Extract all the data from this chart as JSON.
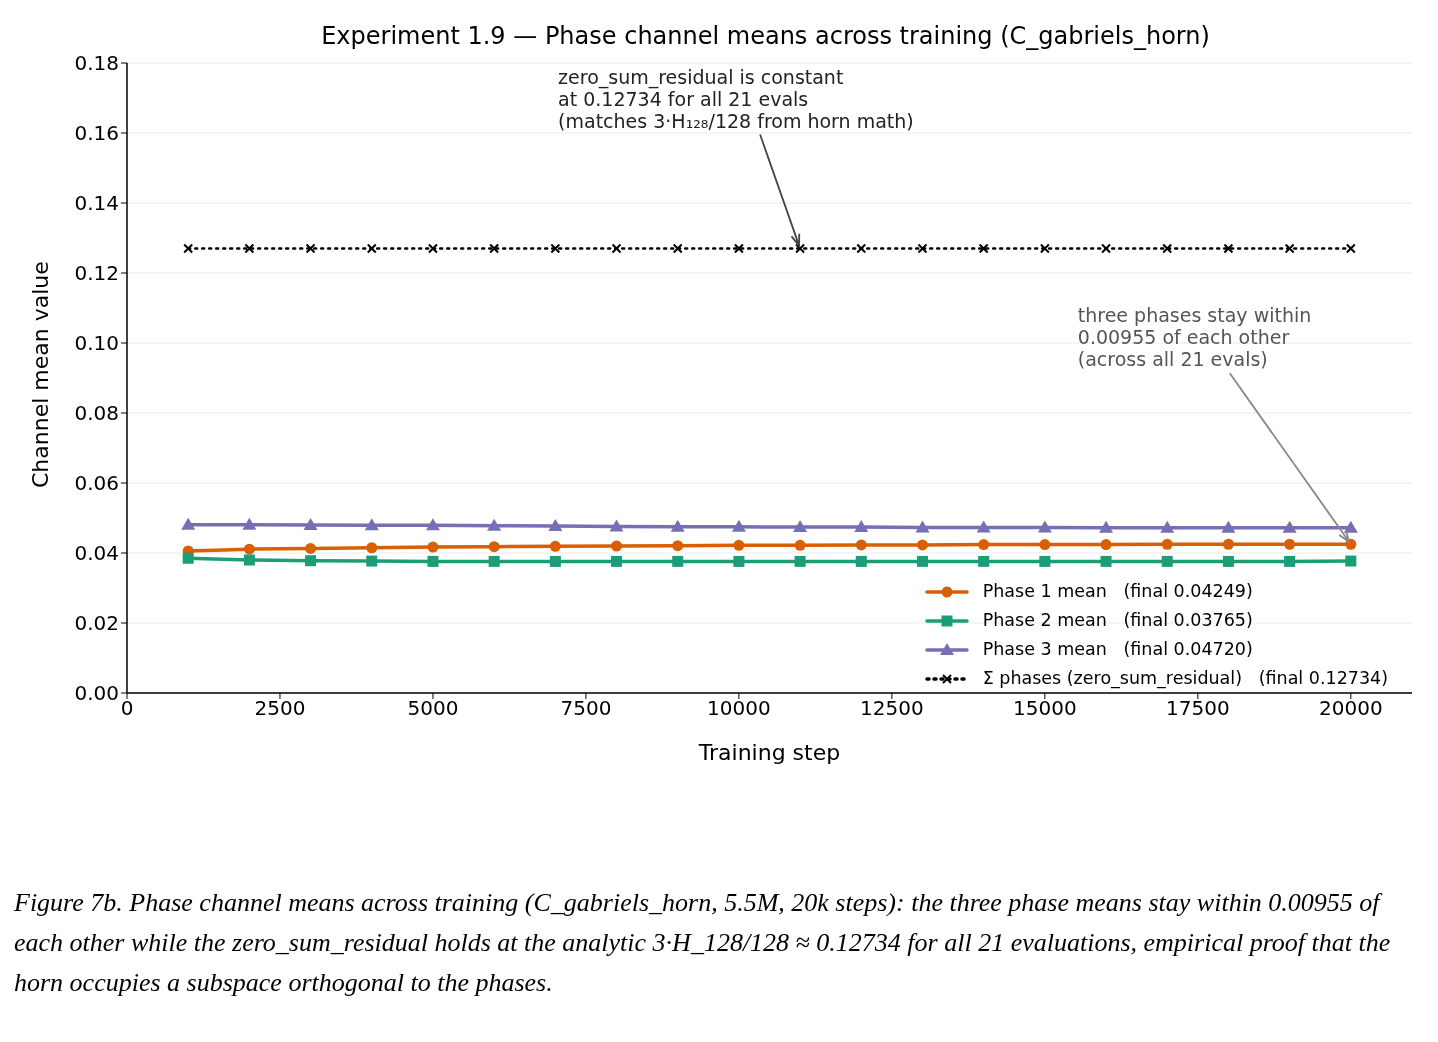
{
  "chart_data": {
    "type": "line",
    "title": "Experiment 1.9 — Phase channel means across training (C_gabriels_horn)",
    "xlabel": "Training step",
    "ylabel": "Channel mean value",
    "x": [
      1000,
      2000,
      3000,
      4000,
      5000,
      6000,
      7000,
      8000,
      9000,
      10000,
      11000,
      12000,
      13000,
      14000,
      15000,
      16000,
      17000,
      18000,
      19000,
      20000
    ],
    "series": [
      {
        "name": "Phase 1 mean   (final 0.04249)",
        "color": "#d95f02",
        "marker": "circle",
        "line_style": "solid",
        "values": [
          0.0406,
          0.0411,
          0.0413,
          0.0415,
          0.0417,
          0.0418,
          0.0419,
          0.042,
          0.0421,
          0.0422,
          0.0422,
          0.0423,
          0.0423,
          0.0424,
          0.0424,
          0.0424,
          0.0425,
          0.0425,
          0.0425,
          0.0425
        ]
      },
      {
        "name": "Phase 2 mean   (final 0.03765)",
        "color": "#1b9e77",
        "marker": "square",
        "line_style": "solid",
        "values": [
          0.0385,
          0.038,
          0.0378,
          0.0377,
          0.0376,
          0.0376,
          0.0376,
          0.0376,
          0.0376,
          0.0376,
          0.0376,
          0.0376,
          0.0376,
          0.0376,
          0.0376,
          0.0376,
          0.0376,
          0.0376,
          0.0376,
          0.0377
        ]
      },
      {
        "name": "Phase 3 mean   (final 0.04720)",
        "color": "#7570b3",
        "marker": "triangle",
        "line_style": "solid",
        "values": [
          0.0481,
          0.0481,
          0.048,
          0.0479,
          0.0479,
          0.0478,
          0.0477,
          0.0476,
          0.0475,
          0.0475,
          0.0474,
          0.0474,
          0.0473,
          0.0473,
          0.0473,
          0.0472,
          0.0472,
          0.0472,
          0.0472,
          0.0472
        ]
      },
      {
        "name": "Σ phases (zero_sum_residual)   (final 0.12734)",
        "color": "#000000",
        "marker": "cross",
        "line_style": "dotted",
        "values": [
          0.127,
          0.127,
          0.127,
          0.127,
          0.127,
          0.127,
          0.127,
          0.127,
          0.127,
          0.127,
          0.127,
          0.127,
          0.127,
          0.127,
          0.127,
          0.127,
          0.127,
          0.127,
          0.127,
          0.127
        ]
      }
    ],
    "xlim": [
      0,
      21000
    ],
    "xticks": [
      0,
      2500,
      5000,
      7500,
      10000,
      12500,
      15000,
      17500,
      20000
    ],
    "ylim": [
      0,
      0.18
    ],
    "yticks": [
      {
        "value": 0,
        "label": "0.00"
      },
      0.02,
      0.04,
      0.06,
      0.08,
      {
        "value": 0.1,
        "label": "0.10"
      },
      0.12,
      0.14,
      0.16,
      0.18
    ],
    "grid": "y",
    "legend": "bottom right",
    "annotations": [
      {
        "text": "zero_sum_residual is constant\nat 0.12734 for all 21 evals\n(matches 3·H₁₂₈/128 from horn math)",
        "x": 11000,
        "y": 0.127
      },
      {
        "text": "three phases stay within\n0.00955 of each other\n(across all 21 evals)",
        "x": 20000,
        "y": 0.0425
      },
      "Figure 7b.  Phase channel means across training (C_gabriels_horn, 5.5M, 20k steps):  the three phase means stay within 0.00955 of each other while the zero_sum_residual holds at the analytic 3·H_128/128 ≈ 0.12734 for all 21 evaluations, empirical proof that the horn occupies a subspace orthogonal to the phases."
    ]
  }
}
